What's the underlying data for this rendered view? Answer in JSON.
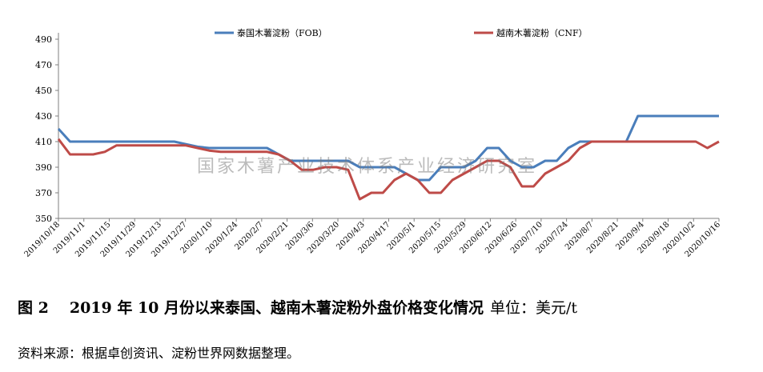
{
  "chart_data": {
    "type": "line",
    "title": "",
    "xlabel": "",
    "ylabel": "",
    "ylim": [
      350,
      490
    ],
    "yticks": [
      350,
      370,
      390,
      410,
      430,
      450,
      470,
      490
    ],
    "x_tick_labels": [
      "2019/10/18",
      "2019/11/1",
      "2019/11/15",
      "2019/11/29",
      "2019/12/13",
      "2019/12/27",
      "2020/1/10",
      "2020/1/24",
      "2020/2/7",
      "2020/2/21",
      "2020/3/6",
      "2020/3/20",
      "2020/4/3",
      "2020/4/17",
      "2020/5/1",
      "2020/5/15",
      "2020/5/29",
      "2020/6/12",
      "2020/6/26",
      "2020/7/10",
      "2020/7/24",
      "2020/8/7",
      "2020/8/21",
      "2020/9/4",
      "2020/9/18",
      "2020/10/2",
      "2020/10/16"
    ],
    "grid": false,
    "legend_position": "top",
    "series": [
      {
        "name": "泰国木薯淀粉（FOB）",
        "color": "#4a7ebb",
        "values": [
          420,
          410,
          410,
          410,
          410,
          410,
          410,
          410,
          410,
          410,
          410,
          408,
          406,
          405,
          405,
          405,
          405,
          405,
          405,
          400,
          395,
          395,
          395,
          395,
          395,
          395,
          390,
          390,
          390,
          390,
          385,
          380,
          380,
          390,
          390,
          390,
          395,
          405,
          405,
          395,
          390,
          390,
          395,
          395,
          405,
          410,
          410,
          410,
          410,
          410,
          430,
          430,
          430,
          430,
          430,
          430,
          430,
          430
        ]
      },
      {
        "name": "越南木薯淀粉（CNF）",
        "color": "#be4b48",
        "values": [
          412,
          400,
          400,
          400,
          402,
          407,
          407,
          407,
          407,
          407,
          407,
          407,
          405,
          403,
          402,
          402,
          402,
          402,
          402,
          400,
          395,
          388,
          388,
          390,
          390,
          388,
          365,
          370,
          370,
          380,
          385,
          380,
          370,
          370,
          380,
          385,
          390,
          395,
          395,
          390,
          375,
          375,
          385,
          390,
          395,
          405,
          410,
          410,
          410,
          410,
          410,
          410,
          410,
          410,
          410,
          410,
          405,
          410
        ]
      }
    ]
  },
  "caption": {
    "figure_no": "图 2",
    "title": "2019 年 10 月份以来泰国、越南木薯淀粉外盘价格变化情况",
    "unit": "单位：美元/t"
  },
  "source": "资料来源：根据卓创资讯、淀粉世界网数据整理。",
  "watermark": "国家木薯产业技术体系产业经济研究室"
}
